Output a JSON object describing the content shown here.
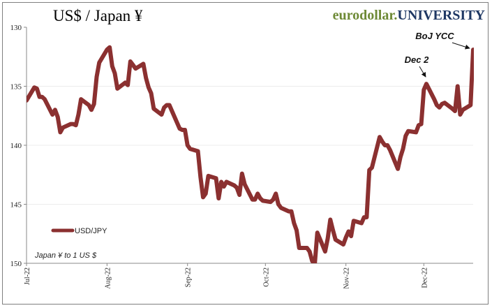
{
  "header": {
    "title": "US$ / Japan ¥",
    "brand_part1": "eurodollar.",
    "brand_part2": "UNIVERSITY"
  },
  "colors": {
    "series": "#8b3030",
    "brand_green": "#6e8a36",
    "brand_navy": "#1f3864",
    "grid": "#ececec"
  },
  "chart_data": {
    "type": "line",
    "title": "US$ / Japan ¥",
    "xlabel": "",
    "ylabel": "",
    "y_inverted": true,
    "ylim": [
      130,
      150
    ],
    "yticks": [
      "130",
      "135",
      "140",
      "145",
      "150"
    ],
    "xticks": [
      "Jul-22",
      "Aug-22",
      "Sep-22",
      "Oct-22",
      "Nov-22",
      "Dec-22"
    ],
    "legend_position": "bottom-left",
    "grid": "horizontal",
    "note": "Japan ¥ to 1 US $",
    "series": [
      {
        "name": "USD/JPY",
        "x": [
          "2022-07-01",
          "2022-07-04",
          "2022-07-05",
          "2022-07-06",
          "2022-07-07",
          "2022-07-08",
          "2022-07-11",
          "2022-07-12",
          "2022-07-13",
          "2022-07-14",
          "2022-07-15",
          "2022-07-18",
          "2022-07-19",
          "2022-07-20",
          "2022-07-21",
          "2022-07-22",
          "2022-07-25",
          "2022-07-26",
          "2022-07-27",
          "2022-07-28",
          "2022-07-29",
          "2022-08-01",
          "2022-08-02",
          "2022-08-03",
          "2022-08-04",
          "2022-08-05",
          "2022-08-08",
          "2022-08-09",
          "2022-08-10",
          "2022-08-11",
          "2022-08-12",
          "2022-08-15",
          "2022-08-16",
          "2022-08-17",
          "2022-08-18",
          "2022-08-19",
          "2022-08-22",
          "2022-08-23",
          "2022-08-24",
          "2022-08-25",
          "2022-08-26",
          "2022-08-29",
          "2022-08-30",
          "2022-08-31",
          "2022-09-01",
          "2022-09-02",
          "2022-09-05",
          "2022-09-06",
          "2022-09-07",
          "2022-09-08",
          "2022-09-09",
          "2022-09-12",
          "2022-09-13",
          "2022-09-14",
          "2022-09-15",
          "2022-09-16",
          "2022-09-19",
          "2022-09-20",
          "2022-09-21",
          "2022-09-22",
          "2022-09-23",
          "2022-09-26",
          "2022-09-27",
          "2022-09-28",
          "2022-09-29",
          "2022-09-30",
          "2022-10-03",
          "2022-10-04",
          "2022-10-05",
          "2022-10-06",
          "2022-10-07",
          "2022-10-10",
          "2022-10-11",
          "2022-10-12",
          "2022-10-13",
          "2022-10-14",
          "2022-10-17",
          "2022-10-18",
          "2022-10-19",
          "2022-10-20",
          "2022-10-21",
          "2022-10-24",
          "2022-10-25",
          "2022-10-26",
          "2022-10-27",
          "2022-10-28",
          "2022-10-31",
          "2022-11-01",
          "2022-11-02",
          "2022-11-03",
          "2022-11-04",
          "2022-11-07",
          "2022-11-08",
          "2022-11-09",
          "2022-11-10",
          "2022-11-11",
          "2022-11-14",
          "2022-11-15",
          "2022-11-16",
          "2022-11-17",
          "2022-11-18",
          "2022-11-21",
          "2022-11-22",
          "2022-11-23",
          "2022-11-24",
          "2022-11-25",
          "2022-11-28",
          "2022-11-29",
          "2022-11-30",
          "2022-12-01",
          "2022-12-02",
          "2022-12-05",
          "2022-12-06",
          "2022-12-07",
          "2022-12-08",
          "2022-12-09",
          "2022-12-12",
          "2022-12-13",
          "2022-12-14",
          "2022-12-15",
          "2022-12-16",
          "2022-12-19",
          "2022-12-20"
        ],
        "values": [
          136.2,
          135.1,
          135.2,
          135.9,
          135.9,
          136.1,
          137.4,
          137.0,
          137.6,
          138.9,
          138.5,
          138.2,
          138.2,
          138.3,
          137.4,
          136.1,
          136.6,
          137.0,
          136.5,
          134.2,
          133.0,
          131.9,
          131.7,
          133.3,
          133.9,
          135.2,
          134.7,
          134.9,
          132.9,
          133.2,
          133.5,
          133.1,
          134.3,
          135.1,
          135.6,
          136.9,
          137.4,
          136.8,
          136.6,
          136.6,
          137.1,
          138.6,
          138.7,
          138.7,
          140.0,
          140.3,
          140.5,
          142.7,
          144.4,
          144.1,
          142.6,
          142.8,
          144.5,
          143.1,
          143.5,
          143.1,
          143.4,
          143.6,
          144.2,
          142.4,
          143.3,
          144.6,
          144.6,
          144.1,
          144.5,
          144.7,
          144.8,
          144.6,
          144.1,
          145.0,
          145.3,
          145.6,
          145.6,
          146.6,
          147.2,
          148.7,
          148.7,
          149.0,
          149.8,
          150.1,
          147.4,
          149.0,
          147.9,
          146.3,
          147.2,
          148.0,
          148.4,
          147.8,
          147.3,
          147.7,
          146.4,
          146.6,
          146.1,
          146.1,
          142.1,
          141.9,
          139.3,
          139.7,
          140.0,
          140.0,
          140.4,
          142.0,
          141.0,
          140.3,
          139.2,
          138.8,
          138.9,
          138.3,
          138.2,
          135.3,
          134.8,
          136.1,
          136.6,
          136.8,
          136.5,
          136.4,
          136.9,
          137.1,
          135.0,
          137.4,
          137.0,
          136.6,
          131.9
        ]
      }
    ],
    "annotations": [
      {
        "text": "Dec 2",
        "x": "2022-12-02",
        "y": 134.8
      },
      {
        "text": "BoJ YCC",
        "x": "2022-12-20",
        "y": 131.9
      }
    ]
  }
}
